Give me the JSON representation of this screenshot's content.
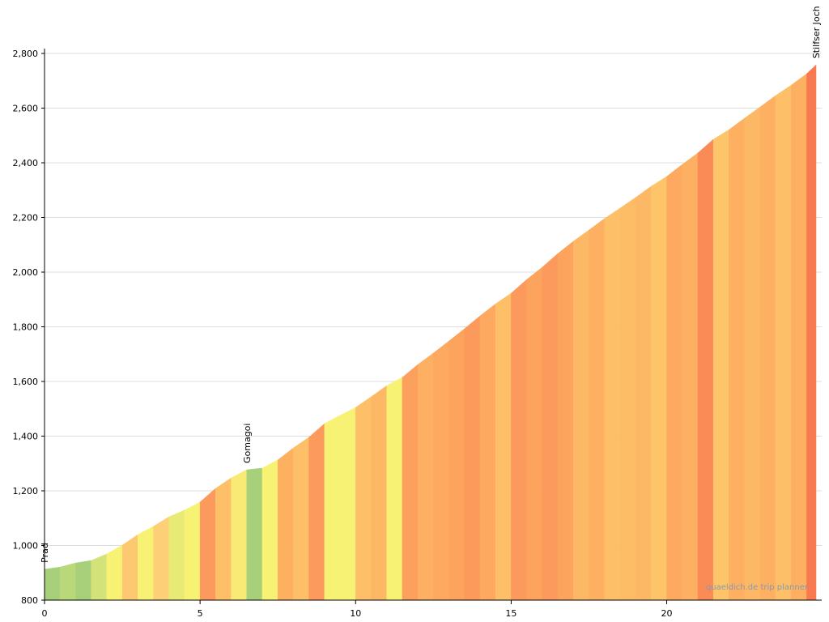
{
  "chart_data": {
    "type": "elevation-profile",
    "x": [
      0,
      0.5,
      1,
      1.5,
      2,
      2.5,
      3,
      3.5,
      4,
      4.5,
      5,
      5.5,
      6,
      6.5,
      7,
      7.5,
      8,
      8.5,
      9,
      9.5,
      10,
      10.5,
      11,
      11.5,
      12,
      12.5,
      13,
      13.5,
      14,
      14.5,
      15,
      15.5,
      16,
      16.5,
      17,
      17.5,
      18,
      18.5,
      19,
      19.5,
      20,
      20.5,
      21,
      21.5,
      22,
      22.5,
      23,
      23.5,
      24,
      24.5,
      24.8
    ],
    "series": [
      {
        "values": [
          913,
          921,
          936,
          945,
          969,
          1001,
          1040,
          1070,
          1105,
          1129,
          1159,
          1209,
          1247,
          1277,
          1283,
          1313,
          1357,
          1396,
          1446,
          1476,
          1505,
          1544,
          1585,
          1615,
          1662,
          1704,
          1748,
          1793,
          1840,
          1884,
          1923,
          1973,
          2018,
          2068,
          2113,
          2154,
          2196,
          2234,
          2273,
          2314,
          2350,
          2394,
          2436,
          2486,
          2521,
          2563,
          2604,
          2646,
          2684,
          2726,
          2758
        ],
        "segment_colors": [
          "#a8d07a",
          "#b8d87a",
          "#a8d07a",
          "#d4e27a",
          "#f8f274",
          "#fdc872",
          "#f8f274",
          "#fdd078",
          "#e8ea76",
          "#f8f274",
          "#fb9a5c",
          "#fdc068",
          "#f8ea74",
          "#a8d07a",
          "#f8f274",
          "#fdb060",
          "#fdc068",
          "#fb9a5c",
          "#f8f274",
          "#f8f274",
          "#fdc068",
          "#fdb866",
          "#f8f274",
          "#fca05e",
          "#fdb062",
          "#fdaa60",
          "#fca45e",
          "#fc9a5c",
          "#fdaa60",
          "#fdc068",
          "#fb9a5c",
          "#fca45e",
          "#fb9a5c",
          "#fca45e",
          "#fdb866",
          "#fdb062",
          "#fdc068",
          "#fdbc66",
          "#fdb866",
          "#fdc46a",
          "#fdaa60",
          "#fdb062",
          "#fa8a56",
          "#fdc46a",
          "#fdb062",
          "#fdb866",
          "#fdb062",
          "#fdc068",
          "#fdb062",
          "#f97a50"
        ]
      }
    ],
    "xlim": [
      0,
      24.8
    ],
    "ylim": [
      800,
      2800
    ],
    "xticks": [
      0,
      5,
      10,
      15,
      20
    ],
    "yticks": [
      800,
      {
        "value": 1000,
        "label": "1,000"
      },
      {
        "value": 1200,
        "label": "1,200"
      },
      {
        "value": 1400,
        "label": "1,400"
      },
      {
        "value": 1600,
        "label": "1,600"
      },
      {
        "value": 1800,
        "label": "1,800"
      },
      {
        "value": 2000,
        "label": "2,000"
      },
      {
        "value": 2200,
        "label": "2,200"
      },
      {
        "value": 2400,
        "label": "2,400"
      },
      {
        "value": 2600,
        "label": "2,600"
      },
      {
        "value": 2800,
        "label": "2,800"
      }
    ],
    "grid": true,
    "annotations": [
      {
        "text": "Prad",
        "x": 0
      },
      {
        "text": "Gomagoi",
        "x": 6.5
      },
      {
        "text": "Stilfser Joch",
        "x": 24.8
      }
    ],
    "watermark": "quaeldich.de trip planner"
  }
}
